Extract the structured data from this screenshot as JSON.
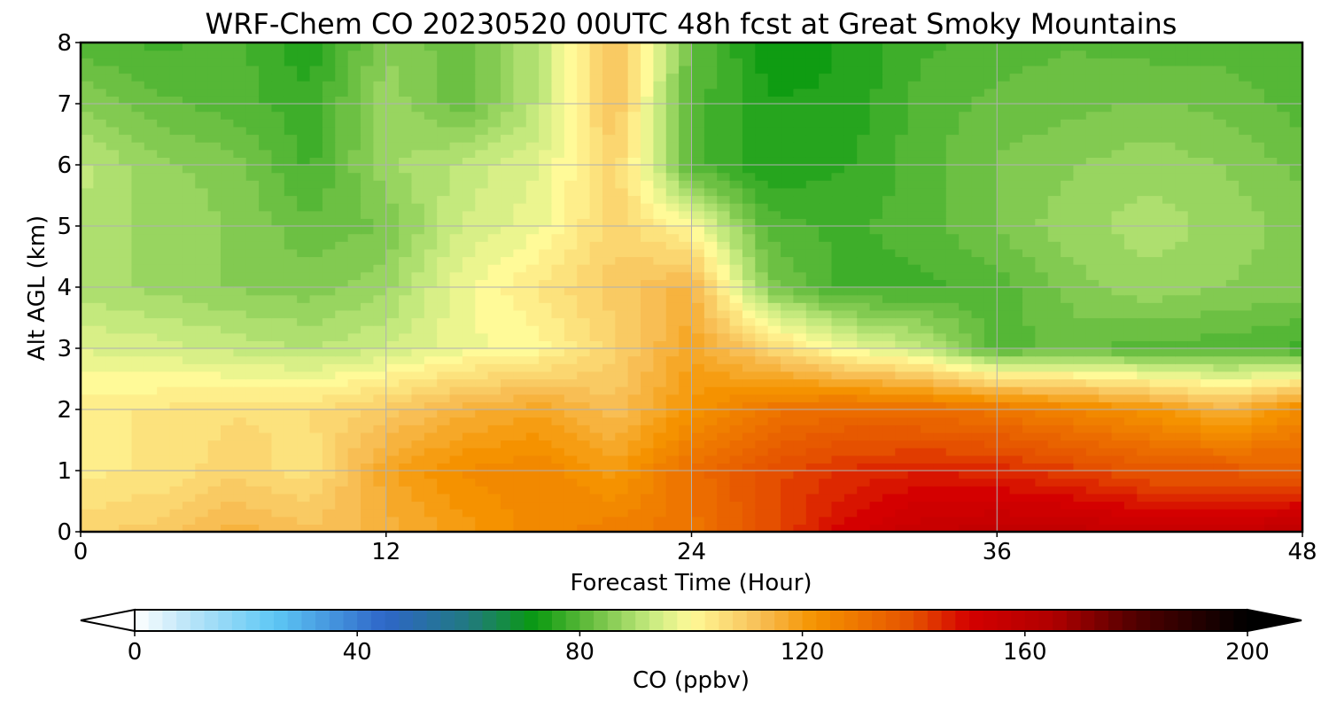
{
  "chart_data": {
    "type": "heatmap",
    "plot_kind": "filled-contour time-height cross section",
    "title": "WRF-Chem CO  20230520 00UTC 48h fcst at Great Smoky Mountains",
    "xlabel": "Forecast Time (Hour)",
    "ylabel": "Alt AGL (km)",
    "xlim": [
      0,
      48
    ],
    "ylim": [
      0,
      8
    ],
    "x_ticks": [
      0,
      12,
      24,
      36,
      48
    ],
    "y_ticks": [
      0,
      1,
      2,
      3,
      4,
      5,
      6,
      7,
      8
    ],
    "grid": true,
    "x": [
      0,
      3,
      6,
      9,
      12,
      15,
      18,
      21,
      24,
      27,
      30,
      33,
      36,
      39,
      42,
      45,
      48
    ],
    "y": [
      0,
      1,
      2,
      3,
      4,
      5,
      6,
      7,
      8
    ],
    "z_units": "ppbv",
    "z": [
      [
        108,
        110,
        115,
        112,
        115,
        120,
        125,
        128,
        130,
        140,
        150,
        156,
        158,
        158,
        155,
        155,
        160
      ],
      [
        103,
        104,
        108,
        105,
        118,
        124,
        126,
        120,
        132,
        140,
        144,
        146,
        145,
        142,
        138,
        138,
        135
      ],
      [
        103,
        104,
        106,
        106,
        110,
        115,
        118,
        112,
        122,
        130,
        133,
        132,
        130,
        126,
        122,
        115,
        125
      ],
      [
        96,
        95,
        93,
        91,
        94,
        98,
        100,
        108,
        118,
        108,
        98,
        93,
        80,
        82,
        80,
        80,
        78
      ],
      [
        90,
        88,
        86,
        85,
        88,
        98,
        104,
        110,
        115,
        85,
        78,
        78,
        80,
        85,
        88,
        86,
        85
      ],
      [
        91,
        88,
        86,
        82,
        84,
        94,
        98,
        108,
        100,
        80,
        78,
        80,
        84,
        88,
        90,
        88,
        85
      ],
      [
        92,
        87,
        85,
        78,
        88,
        92,
        96,
        108,
        80,
        74,
        76,
        80,
        84,
        86,
        88,
        86,
        83
      ],
      [
        86,
        82,
        80,
        77,
        88,
        82,
        92,
        112,
        80,
        74,
        74,
        80,
        82,
        83,
        84,
        83,
        80
      ],
      [
        80,
        78,
        80,
        74,
        86,
        82,
        92,
        112,
        82,
        72,
        74,
        78,
        80,
        81,
        80,
        80,
        79
      ]
    ],
    "colorbar": {
      "label": "CO  (ppbv)",
      "min": 0,
      "max": 200,
      "ticks": [
        0,
        40,
        80,
        120,
        160,
        200
      ],
      "extend": "both",
      "stops": [
        {
          "v": 0,
          "c": "#ffffff"
        },
        {
          "v": 10,
          "c": "#b8e4f8"
        },
        {
          "v": 25,
          "c": "#5ec8f5"
        },
        {
          "v": 45,
          "c": "#2e66c8"
        },
        {
          "v": 60,
          "c": "#217a80"
        },
        {
          "v": 72,
          "c": "#0a9a10"
        },
        {
          "v": 82,
          "c": "#68be40"
        },
        {
          "v": 93,
          "c": "#c8eb80"
        },
        {
          "v": 100,
          "c": "#fffa98"
        },
        {
          "v": 112,
          "c": "#f8c058"
        },
        {
          "v": 122,
          "c": "#f59400"
        },
        {
          "v": 140,
          "c": "#e55000"
        },
        {
          "v": 150,
          "c": "#d40000"
        },
        {
          "v": 165,
          "c": "#b00000"
        },
        {
          "v": 180,
          "c": "#500000"
        },
        {
          "v": 200,
          "c": "#000000"
        }
      ]
    }
  }
}
